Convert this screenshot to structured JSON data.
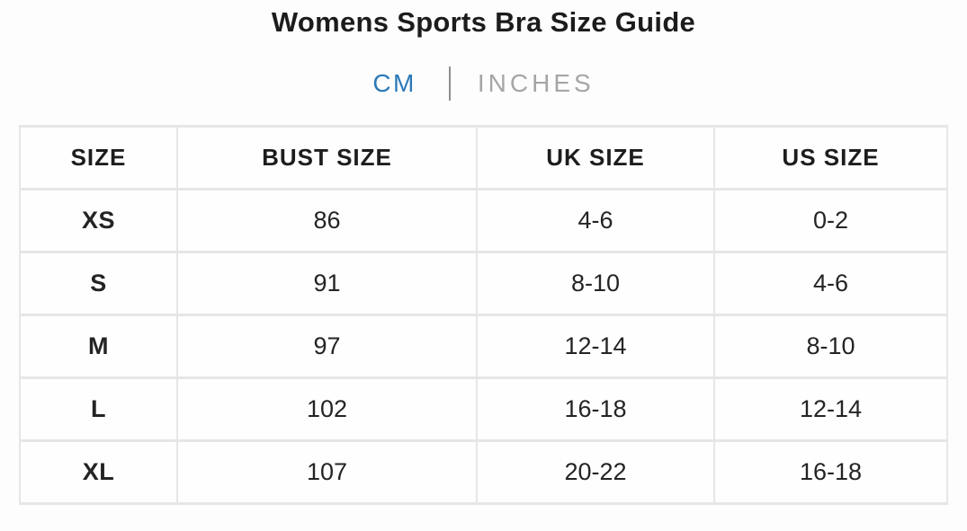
{
  "page": {
    "title": "Womens Sports Bra Size Guide"
  },
  "unit_toggle": {
    "cm_label": "CM",
    "inches_label": "INCHES",
    "active_option": "CM",
    "active_color": "#2b79b9",
    "inactive_color": "#a6a6a6"
  },
  "size_table": {
    "columns": [
      "SIZE",
      "BUST SIZE",
      "UK SIZE",
      "US SIZE"
    ],
    "rows": [
      [
        "XS",
        "86",
        "4-6",
        "0-2"
      ],
      [
        "S",
        "91",
        "8-10",
        "4-6"
      ],
      [
        "M",
        "97",
        "12-14",
        "8-10"
      ],
      [
        "L",
        "102",
        "16-18",
        "12-14"
      ],
      [
        "XL",
        "107",
        "20-22",
        "16-18"
      ]
    ]
  },
  "colors": {
    "table_border": "#e6e6e6",
    "title_text": "#1c1c1c",
    "cell_text": "#242424"
  }
}
